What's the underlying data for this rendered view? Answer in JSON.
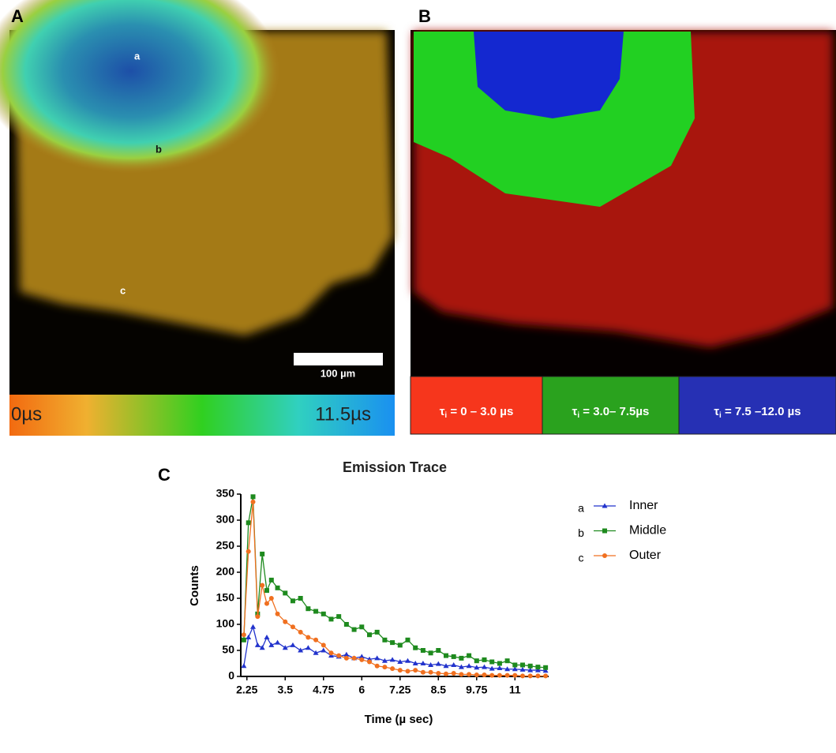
{
  "panels": {
    "a": {
      "label": "A",
      "annotations": [
        "a",
        "b",
        "c"
      ],
      "scale_bar": "100 µm",
      "colorbar": [
        "0µs",
        "11.5µs"
      ]
    },
    "b": {
      "label": "B",
      "legend": [
        {
          "symbol": "τ",
          "subscript": "i",
          "text": " = 0 – 3.0 µs",
          "color": "#f6361c"
        },
        {
          "symbol": "τ",
          "subscript": "i",
          "text": " = 3.0– 7.5µs",
          "color": "#2aa21e"
        },
        {
          "symbol": "τ",
          "subscript": "i",
          "text": " = 7.5 –12.0 µs",
          "color": "#2630b4"
        }
      ]
    },
    "c": {
      "label": "C"
    }
  },
  "chart_data": {
    "type": "line",
    "title": "Emission Trace",
    "x_label": "Time (µ sec)",
    "y_label": "Counts",
    "x": [
      2.15,
      2.3,
      2.45,
      2.6,
      2.75,
      2.9,
      3.05,
      3.25,
      3.5,
      3.75,
      4,
      4.25,
      4.5,
      4.75,
      5,
      5.25,
      5.5,
      5.75,
      6,
      6.25,
      6.5,
      6.75,
      7,
      7.25,
      7.5,
      7.75,
      8,
      8.25,
      8.5,
      8.75,
      9,
      9.25,
      9.5,
      9.75,
      10,
      10.25,
      10.5,
      10.75,
      11,
      11.25,
      11.5,
      11.75,
      12
    ],
    "series": [
      {
        "name": "Inner",
        "key": "a",
        "color": "#2233cc",
        "marker": "triangle",
        "values": [
          20,
          75,
          95,
          60,
          55,
          75,
          60,
          65,
          55,
          60,
          50,
          55,
          45,
          50,
          40,
          38,
          42,
          35,
          38,
          33,
          35,
          30,
          32,
          28,
          30,
          25,
          25,
          22,
          24,
          20,
          22,
          18,
          20,
          17,
          18,
          15,
          16,
          14,
          14,
          13,
          12,
          12,
          11
        ]
      },
      {
        "name": "Middle",
        "key": "b",
        "color": "#1e8a1e",
        "marker": "square",
        "values": [
          70,
          295,
          345,
          120,
          235,
          165,
          185,
          170,
          160,
          145,
          150,
          130,
          125,
          120,
          110,
          115,
          100,
          90,
          95,
          80,
          85,
          70,
          65,
          60,
          70,
          55,
          50,
          45,
          50,
          40,
          38,
          35,
          40,
          30,
          32,
          28,
          25,
          30,
          22,
          22,
          20,
          18,
          17
        ]
      },
      {
        "name": "Outer",
        "key": "c",
        "color": "#f07020",
        "marker": "circle",
        "values": [
          80,
          240,
          335,
          115,
          175,
          140,
          150,
          120,
          105,
          95,
          85,
          75,
          70,
          60,
          45,
          40,
          35,
          35,
          32,
          28,
          20,
          18,
          15,
          12,
          10,
          12,
          8,
          8,
          6,
          5,
          6,
          4,
          4,
          3,
          3,
          2,
          2,
          2,
          2,
          1,
          1,
          1,
          1
        ]
      }
    ],
    "xlim": [
      2.05,
      12.1
    ],
    "ylim": [
      0,
      350
    ],
    "xticks": [
      2.25,
      3.5,
      4.75,
      6,
      7.25,
      8.5,
      9.75,
      11
    ],
    "yticks": [
      0,
      50,
      100,
      150,
      200,
      250,
      300,
      350
    ]
  }
}
